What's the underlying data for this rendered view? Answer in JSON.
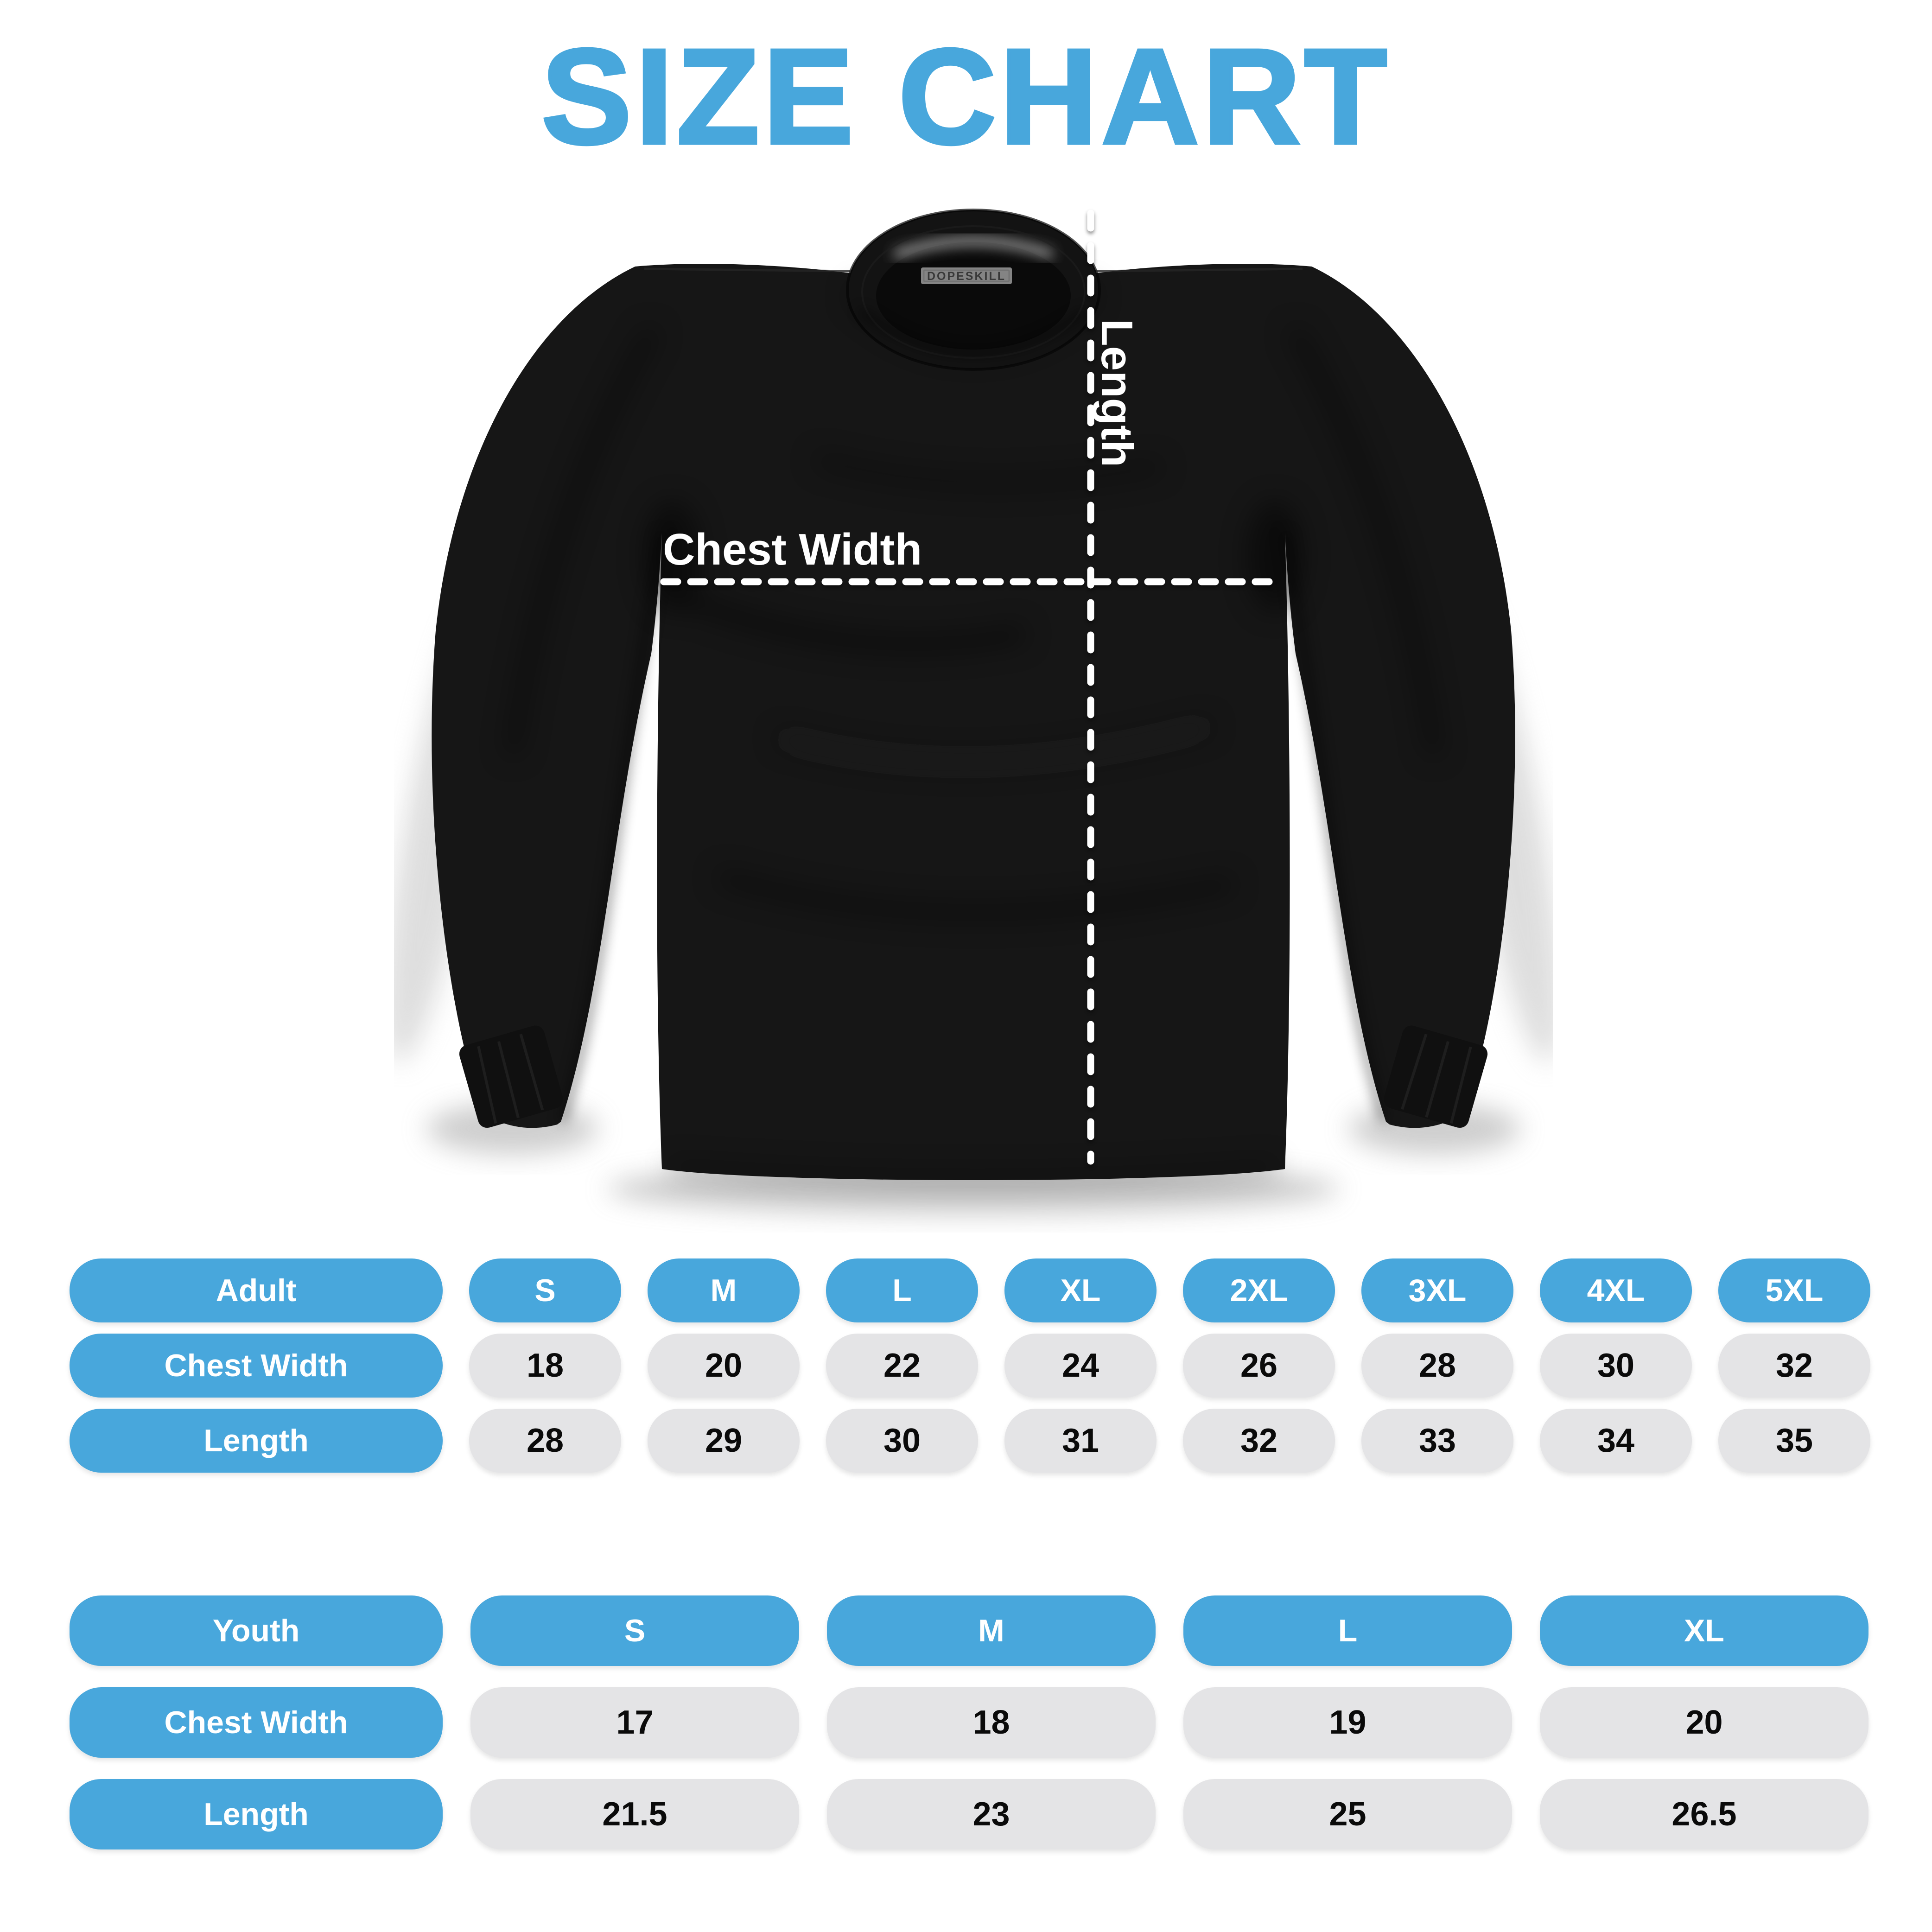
{
  "title": "SIZE CHART",
  "colors": {
    "accent_blue": "#48A7DC",
    "cell_gray": "#E4E4E6",
    "value_text": "#0a0a0a",
    "shirt_black": "#161616",
    "dash_white": "#ffffff"
  },
  "shirt": {
    "tag_label": "DOPESKILL",
    "length_label": "Length",
    "chest_width_label": "Chest Width"
  },
  "adult_table": {
    "header": [
      "Adult",
      "S",
      "M",
      "L",
      "XL",
      "2XL",
      "3XL",
      "4XL",
      "5XL"
    ],
    "rows": [
      {
        "label": "Chest Width",
        "values": [
          "18",
          "20",
          "22",
          "24",
          "26",
          "28",
          "30",
          "32"
        ]
      },
      {
        "label": "Length",
        "values": [
          "28",
          "29",
          "30",
          "31",
          "32",
          "33",
          "34",
          "35"
        ]
      }
    ]
  },
  "youth_table": {
    "header": [
      "Youth",
      "S",
      "M",
      "L",
      "XL"
    ],
    "rows": [
      {
        "label": "Chest Width",
        "values": [
          "17",
          "18",
          "19",
          "20"
        ]
      },
      {
        "label": "Length",
        "values": [
          "21.5",
          "23",
          "25",
          "26.5"
        ]
      }
    ]
  }
}
